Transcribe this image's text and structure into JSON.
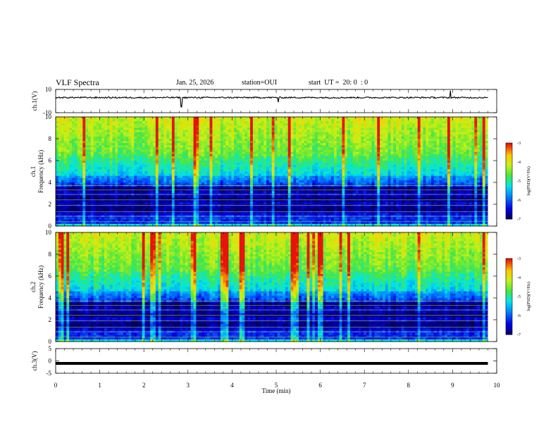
{
  "header": {
    "title": "VLF Spectra",
    "date": "Jan. 25, 2026",
    "station": "station=OUI",
    "start_ut": "start  UT =  20: 0  : 0"
  },
  "chart_data": [
    {
      "type": "line",
      "panel": "ch1-voltage",
      "ylabel": "ch.1(V)",
      "ylim": [
        -10,
        10
      ],
      "yticks": [
        "10",
        "-10"
      ],
      "xlim": [
        0,
        10
      ],
      "series": [
        {
          "name": "ch.1",
          "baseline": 3.0,
          "noise_amplitude": 0.6,
          "spikes": [
            {
              "x": 2.85,
              "amp": -8
            },
            {
              "x": 5.05,
              "amp": -4
            },
            {
              "x": 8.95,
              "amp": 6
            }
          ]
        }
      ],
      "data_extent_x": 9.8
    },
    {
      "type": "heatmap",
      "panel": "ch1-spectrogram",
      "ylabel": "ch.1",
      "ylabel2": "Frequency  (kHz)",
      "ylim": [
        0,
        10
      ],
      "yticks": [
        "0",
        "2",
        "4",
        "6",
        "8",
        "10"
      ],
      "xlim": [
        0,
        10
      ],
      "data_extent_x": 9.8,
      "color_scale": {
        "label": "log(PSD)(V²/Hz)",
        "min": -7,
        "max": -3,
        "ticks": [
          "-3",
          "-4",
          "-5",
          "-6",
          "-7"
        ]
      }
    },
    {
      "type": "heatmap",
      "panel": "ch2-spectrogram",
      "ylabel": "ch.2",
      "ylabel2": "Frequency  (kHz)",
      "ylim": [
        0,
        10
      ],
      "yticks": [
        "0",
        "2",
        "4",
        "6",
        "8",
        "10"
      ],
      "xlim": [
        0,
        10
      ],
      "data_extent_x": 9.8,
      "color_scale": {
        "label": "log(PSD)(V²/Hz)",
        "min": -7,
        "max": -3,
        "ticks": [
          "-3",
          "-4",
          "-5",
          "-6",
          "-7"
        ]
      }
    },
    {
      "type": "line",
      "panel": "ch3-voltage",
      "ylabel": "ch.3(V)",
      "ylim": [
        -5,
        5
      ],
      "yticks": [
        "5",
        "0",
        "-5"
      ],
      "xlim": [
        0,
        10
      ],
      "series": [
        {
          "name": "ch.3",
          "baseline": -1.0
        }
      ],
      "data_extent_x": 9.8
    }
  ],
  "xaxis": {
    "xlabel": "Time  (min)",
    "ticks": [
      "0",
      "1",
      "2",
      "3",
      "4",
      "5",
      "6",
      "7",
      "8",
      "9",
      "10"
    ]
  },
  "colors": {
    "trace": "#000000",
    "background": "#ffffff"
  }
}
